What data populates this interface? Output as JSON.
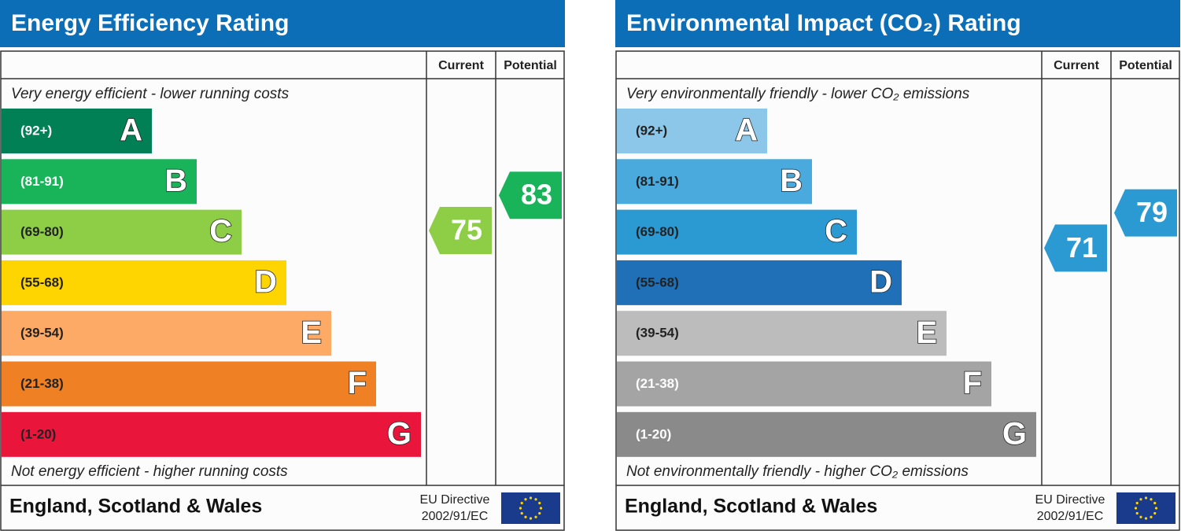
{
  "panels": [
    {
      "title": "Energy Efficiency Rating",
      "header": {
        "current": "Current",
        "potential": "Potential"
      },
      "top_note": "Very energy efficient - lower running costs",
      "bands": [
        {
          "range": "(92+)",
          "letter": "A",
          "color": "#008054",
          "label_color": "#ffffff"
        },
        {
          "range": "(81-91)",
          "letter": "B",
          "color": "#19b459",
          "label_color": "#ffffff"
        },
        {
          "range": "(69-80)",
          "letter": "C",
          "color": "#8dce46",
          "label_color": "#222222"
        },
        {
          "range": "(55-68)",
          "letter": "D",
          "color": "#ffd500",
          "label_color": "#222222"
        },
        {
          "range": "(39-54)",
          "letter": "E",
          "color": "#fcaa65",
          "label_color": "#222222"
        },
        {
          "range": "(21-38)",
          "letter": "F",
          "color": "#ef8023",
          "label_color": "#222222"
        },
        {
          "range": "(1-20)",
          "letter": "G",
          "color": "#e9153b",
          "label_color": "#222222"
        }
      ],
      "bottom_note": "Not energy efficient - higher running costs",
      "current": {
        "value": 75,
        "color": "#8dce46"
      },
      "potential": {
        "value": 83,
        "color": "#19b459"
      },
      "footer": {
        "region": "England, Scotland & Wales",
        "directive": [
          "EU Directive",
          "2002/91/EC"
        ]
      }
    },
    {
      "title": "Environmental Impact (CO₂) Rating",
      "header": {
        "current": "Current",
        "potential": "Potential"
      },
      "top_note": "Very environmentally friendly - lower CO₂ emissions",
      "bands": [
        {
          "range": "(92+)",
          "letter": "A",
          "color": "#8cc6e8",
          "label_color": "#222222"
        },
        {
          "range": "(81-91)",
          "letter": "B",
          "color": "#4aa9dd",
          "label_color": "#222222"
        },
        {
          "range": "(69-80)",
          "letter": "C",
          "color": "#2b9ad3",
          "label_color": "#222222"
        },
        {
          "range": "(55-68)",
          "letter": "D",
          "color": "#1f70b6",
          "label_color": "#222222"
        },
        {
          "range": "(39-54)",
          "letter": "E",
          "color": "#bcbcbc",
          "label_color": "#222222"
        },
        {
          "range": "(21-38)",
          "letter": "F",
          "color": "#a4a4a4",
          "label_color": "#ffffff"
        },
        {
          "range": "(1-20)",
          "letter": "G",
          "color": "#8a8a8a",
          "label_color": "#ffffff"
        }
      ],
      "bottom_note": "Not environmentally friendly - higher CO₂ emissions",
      "current": {
        "value": 71,
        "color": "#2b9ad3"
      },
      "potential": {
        "value": 79,
        "color": "#2b9ad3"
      },
      "footer": {
        "region": "England, Scotland & Wales",
        "directive": [
          "EU Directive",
          "2002/91/EC"
        ]
      }
    }
  ]
}
